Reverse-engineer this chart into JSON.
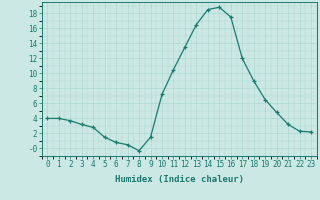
{
  "x": [
    0,
    1,
    2,
    3,
    4,
    5,
    6,
    7,
    8,
    9,
    10,
    11,
    12,
    13,
    14,
    15,
    16,
    17,
    18,
    19,
    20,
    21,
    22,
    23
  ],
  "y": [
    4.0,
    4.0,
    3.7,
    3.2,
    2.8,
    1.5,
    0.8,
    0.5,
    -0.3,
    1.5,
    7.2,
    10.5,
    13.5,
    16.5,
    18.5,
    18.8,
    17.5,
    12.0,
    9.0,
    6.5,
    4.8,
    3.2,
    2.3,
    2.2
  ],
  "line_color": "#1a7a6e",
  "marker": "+",
  "marker_size": 3,
  "bg_color": "#cce8e4",
  "grid_color_major": "#b0d8d0",
  "grid_color_minor": "#c8e4e0",
  "xlabel": "Humidex (Indice chaleur)",
  "ylim": [
    -1.0,
    19.5
  ],
  "xlim": [
    -0.5,
    23.5
  ],
  "yticks": [
    0,
    2,
    4,
    6,
    8,
    10,
    12,
    14,
    16,
    18
  ],
  "ytick_labels": [
    "-0",
    "2",
    "4",
    "6",
    "8",
    "10",
    "12",
    "14",
    "16",
    "18"
  ],
  "xticks": [
    0,
    1,
    2,
    3,
    4,
    5,
    6,
    7,
    8,
    9,
    10,
    11,
    12,
    13,
    14,
    15,
    16,
    17,
    18,
    19,
    20,
    21,
    22,
    23
  ],
  "label_fontsize": 6.5,
  "tick_fontsize": 5.5
}
